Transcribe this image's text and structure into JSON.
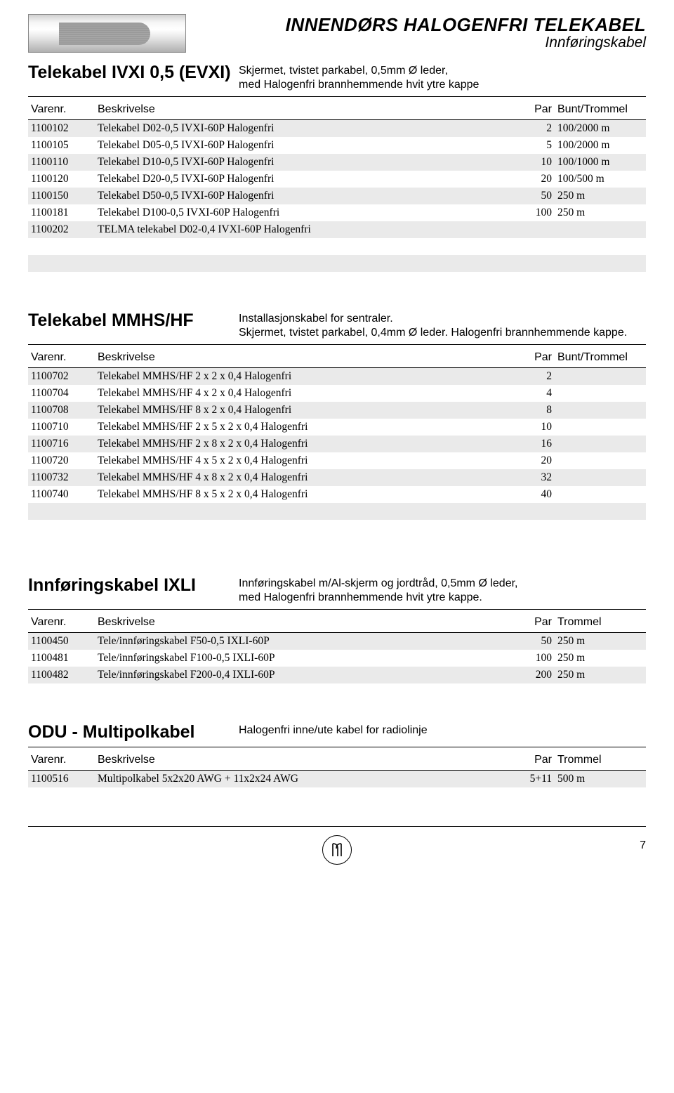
{
  "header": {
    "title": "INNENDØRS HALOGENFRI TELEKABEL",
    "subtitle": "Innføringskabel"
  },
  "sections": [
    {
      "title": "Telekabel IVXI 0,5 (EVXI)",
      "desc": "Skjermet, tvistet parkabel, 0,5mm Ø leder,\nmed Halogenfri brannhemmende hvit ytre kappe",
      "columns": [
        "Varenr.",
        "Beskrivelse",
        "Par",
        "Bunt/Trommel"
      ],
      "rows": [
        [
          "1100102",
          "Telekabel D02-0,5 IVXI-60P Halogenfri",
          "2",
          "100/2000 m"
        ],
        [
          "1100105",
          "Telekabel D05-0,5 IVXI-60P Halogenfri",
          "5",
          "100/2000 m"
        ],
        [
          "1100110",
          "Telekabel D10-0,5 IVXI-60P Halogenfri",
          "10",
          "100/1000 m"
        ],
        [
          "1100120",
          "Telekabel D20-0,5 IVXI-60P Halogenfri",
          "20",
          "100/500 m"
        ],
        [
          "1100150",
          "Telekabel D50-0,5 IVXI-60P Halogenfri",
          "50",
          "250 m"
        ],
        [
          "1100181",
          "Telekabel D100-0,5 IVXI-60P Halogenfri",
          "100",
          "250 m"
        ],
        [
          "1100202",
          "TELMA telekabel D02-0,4 IVXI-60P Halogenfri",
          "",
          ""
        ]
      ]
    },
    {
      "title": "Telekabel MMHS/HF",
      "desc": "Installasjonskabel for sentraler.\nSkjermet, tvistet parkabel, 0,4mm Ø leder. Halogenfri brannhemmende kappe.",
      "columns": [
        "Varenr.",
        "Beskrivelse",
        "Par",
        "Bunt/Trommel"
      ],
      "rows": [
        [
          "1100702",
          "Telekabel MMHS/HF 2 x 2 x 0,4 Halogenfri",
          "2",
          ""
        ],
        [
          "1100704",
          "Telekabel MMHS/HF 4 x 2 x 0,4 Halogenfri",
          "4",
          ""
        ],
        [
          "1100708",
          "Telekabel MMHS/HF 8 x 2 x 0,4 Halogenfri",
          "8",
          ""
        ],
        [
          "1100710",
          "Telekabel MMHS/HF 2 x 5 x 2 x 0,4 Halogenfri",
          "10",
          ""
        ],
        [
          "1100716",
          "Telekabel MMHS/HF 2 x 8 x 2 x 0,4 Halogenfri",
          "16",
          ""
        ],
        [
          "1100720",
          "Telekabel MMHS/HF 4 x 5 x 2 x 0,4 Halogenfri",
          "20",
          ""
        ],
        [
          "1100732",
          "Telekabel MMHS/HF 4 x 8 x 2 x 0,4 Halogenfri",
          "32",
          ""
        ],
        [
          "1100740",
          "Telekabel MMHS/HF 8 x 5 x 2 x 0,4 Halogenfri",
          "40",
          ""
        ]
      ]
    },
    {
      "title": "Innføringskabel IXLI",
      "desc": "Innføringskabel m/Al-skjerm og jordtråd, 0,5mm Ø leder,\nmed Halogenfri brannhemmende hvit ytre kappe.",
      "columns": [
        "Varenr.",
        "Beskrivelse",
        "Par",
        "Trommel"
      ],
      "rows": [
        [
          "1100450",
          "Tele/innføringskabel F50-0,5 IXLI-60P",
          "50",
          "250 m"
        ],
        [
          "1100481",
          "Tele/innføringskabel F100-0,5 IXLI-60P",
          "100",
          "250 m"
        ],
        [
          "1100482",
          "Tele/innføringskabel F200-0,4 IXLI-60P",
          "200",
          "250 m"
        ]
      ]
    },
    {
      "title": "ODU - Multipolkabel",
      "desc": "Halogenfri inne/ute kabel for radiolinje",
      "columns": [
        "Varenr.",
        "Beskrivelse",
        "Par",
        "Trommel"
      ],
      "rows": [
        [
          "1100516",
          "Multipolkabel 5x2x20 AWG + 11x2x24 AWG",
          "5+11",
          "500 m"
        ]
      ]
    }
  ],
  "pageNumber": "7"
}
